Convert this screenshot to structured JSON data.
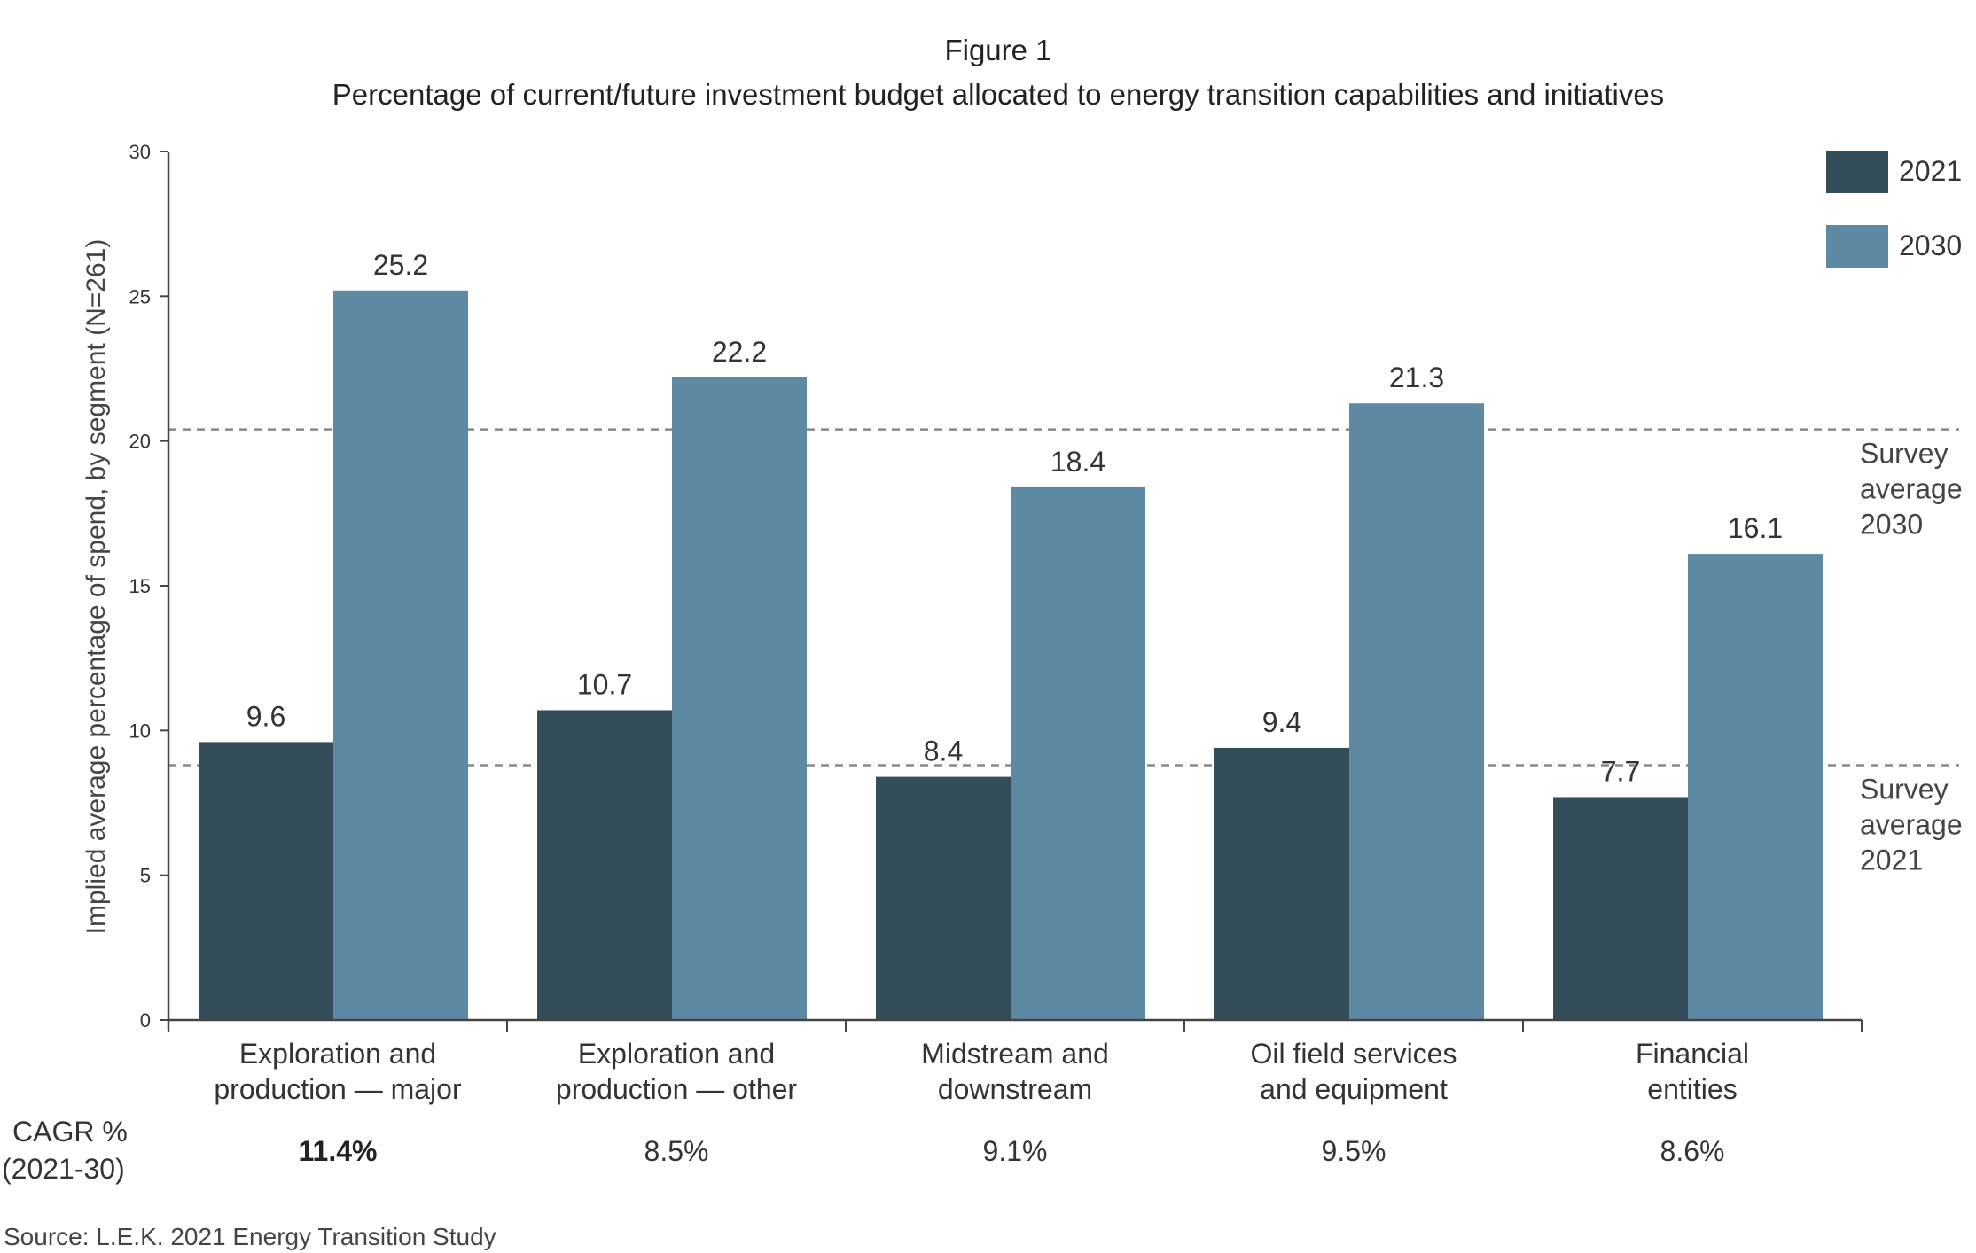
{
  "colors": {
    "y2021": "#344d5a",
    "y2030": "#5e89a3",
    "axis": "#444444",
    "ref_line": "#888888"
  },
  "figure_label": "Figure 1",
  "source": "Source: L.E.K. 2021 Energy Transition Study",
  "cagr": {
    "label_line1": "CAGR %",
    "label_line2": "(2021-30)",
    "values": [
      "11.4%",
      "8.5%",
      "9.1%",
      "9.5%",
      "8.6%"
    ],
    "bold_index": 0
  },
  "chart_data": {
    "type": "bar",
    "title": "Percentage of current/future investment budget allocated to energy transition capabilities and initiatives",
    "ylabel": "Implied average percentage of spend, by segment (N=261)",
    "xlabel": "",
    "ylim": [
      0,
      30
    ],
    "yticks": [
      0,
      5,
      10,
      15,
      20,
      25,
      30
    ],
    "grid": false,
    "legend_position": "top-right",
    "categories": [
      [
        "Exploration and",
        "production — major"
      ],
      [
        "Exploration and",
        "production — other"
      ],
      [
        "Midstream and",
        "downstream"
      ],
      [
        "Oil field services",
        "and equipment"
      ],
      [
        "Financial",
        "entities"
      ]
    ],
    "series": [
      {
        "name": "2021",
        "values": [
          9.6,
          10.7,
          8.4,
          9.4,
          7.7
        ]
      },
      {
        "name": "2030",
        "values": [
          25.2,
          22.2,
          18.4,
          21.3,
          16.1
        ]
      }
    ],
    "value_labels": [
      [
        "9.6",
        "10.7",
        "8.4",
        "9.4",
        "7.7"
      ],
      [
        "25.2",
        "22.2",
        "18.4",
        "21.3",
        "16.1"
      ]
    ],
    "reference_lines": [
      {
        "value": 20.4,
        "label": [
          "Survey",
          "average",
          "2030"
        ]
      },
      {
        "value": 8.8,
        "label": [
          "Survey",
          "average",
          "2021"
        ]
      }
    ]
  }
}
